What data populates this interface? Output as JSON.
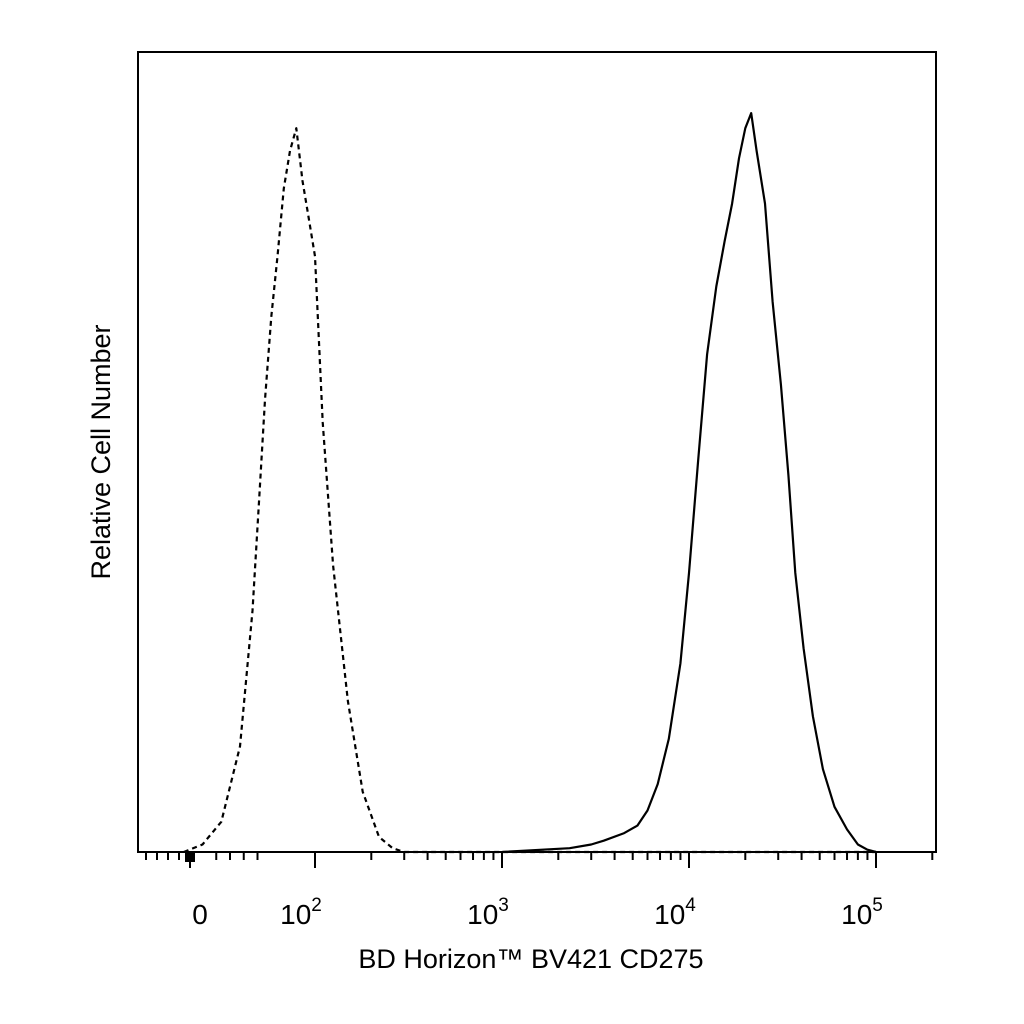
{
  "chart_data": {
    "type": "line",
    "title": "",
    "xlabel": "BD Horizon™ BV421 CD275",
    "ylabel": "Relative Cell Number",
    "x_scale": "biexponential",
    "x_ticks": [
      {
        "value": 0,
        "base": "0",
        "exp": ""
      },
      {
        "value": 100,
        "base": "10",
        "exp": "2"
      },
      {
        "value": 1000,
        "base": "10",
        "exp": "3"
      },
      {
        "value": 10000,
        "base": "10",
        "exp": "4"
      },
      {
        "value": 100000,
        "base": "10",
        "exp": "5"
      }
    ],
    "xlim": [
      -200,
      250000
    ],
    "ylim": [
      0,
      100
    ],
    "grid": false,
    "legend": "none",
    "series": [
      {
        "style": "dashed",
        "color": "#000000",
        "x": [
          -5,
          10,
          25,
          40,
          50,
          55,
          60,
          65,
          70,
          75,
          80,
          85,
          90,
          95,
          100,
          110,
          125,
          150,
          180,
          220,
          260,
          300,
          1000,
          10000,
          100000
        ],
        "y": [
          0,
          1,
          4,
          14,
          32,
          46,
          60,
          71,
          79,
          88,
          93,
          96,
          89,
          84,
          79,
          57,
          38,
          20,
          8,
          2,
          0.5,
          0,
          0,
          0,
          0
        ]
      },
      {
        "style": "solid",
        "color": "#000000",
        "x": [
          1000,
          2300,
          3000,
          3500,
          4500,
          5300,
          6000,
          6800,
          7800,
          9000,
          10000,
          11200,
          12500,
          14000,
          15500,
          17000,
          18500,
          20000,
          21500,
          23000,
          25500,
          28000,
          31000,
          34000,
          37000,
          41000,
          46000,
          52000,
          60000,
          70000,
          80000,
          90000,
          100000
        ],
        "y": [
          0,
          0.5,
          1,
          1.5,
          2.5,
          3.5,
          5.5,
          9,
          15,
          25,
          37,
          52,
          66,
          75,
          81,
          86,
          92,
          96,
          98,
          93,
          86,
          73,
          62,
          50,
          37,
          27,
          18,
          11,
          6,
          3,
          1,
          0.3,
          0
        ]
      }
    ]
  }
}
